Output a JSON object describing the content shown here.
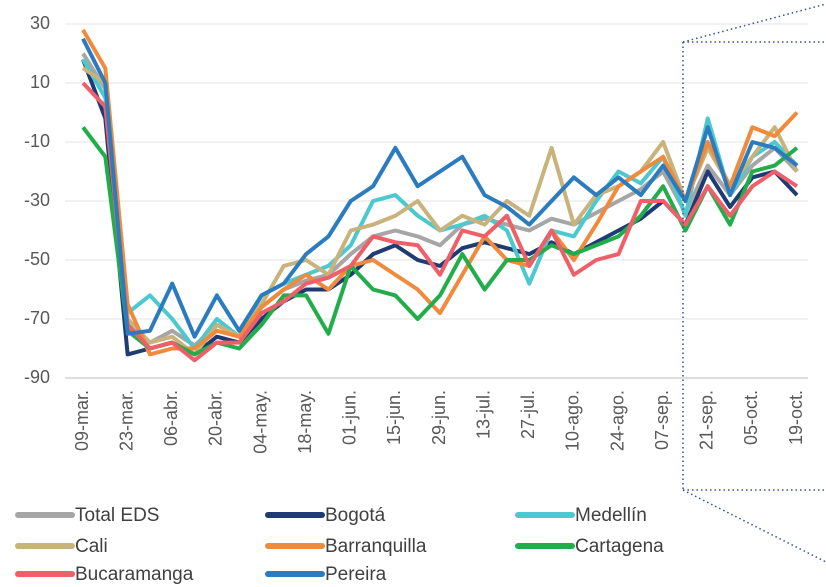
{
  "chart_data": {
    "type": "line",
    "categories": [
      "09-mar.",
      null,
      "23-mar.",
      null,
      "06-abr.",
      null,
      "20-abr.",
      null,
      "04-may.",
      null,
      "18-may.",
      null,
      "01-jun.",
      null,
      "15-jun.",
      null,
      "29-jun.",
      null,
      "13-jul.",
      null,
      "27-jul.",
      null,
      "10-ago.",
      null,
      "24-ago.",
      null,
      "07-sep.",
      null,
      "21-sep.",
      null,
      "05-oct.",
      null,
      "19-oct."
    ],
    "ylim": [
      -90,
      30
    ],
    "yticks": [
      30,
      10,
      -10,
      -30,
      -50,
      -70,
      -90
    ],
    "grid": true,
    "series": [
      {
        "name": "Total EDS",
        "color": "#a6a6a6",
        "values": [
          20,
          8,
          -72,
          -78,
          -74,
          -79,
          -72,
          -76,
          -66,
          -60,
          -57,
          -55,
          -48,
          -42,
          -40,
          -42,
          -45,
          -38,
          -36,
          -38,
          -40,
          -36,
          -38,
          -34,
          -30,
          -26,
          -20,
          -34,
          -18,
          -28,
          -18,
          -12,
          -20
        ]
      },
      {
        "name": "Bogotá",
        "color": "#1f3b73",
        "values": [
          18,
          -2,
          -82,
          -80,
          -78,
          -82,
          -76,
          -78,
          -70,
          -64,
          -60,
          -60,
          -55,
          -48,
          -45,
          -50,
          -52,
          -46,
          -44,
          -46,
          -48,
          -44,
          -48,
          -44,
          -40,
          -36,
          -30,
          -38,
          -20,
          -32,
          -22,
          -20,
          -28
        ]
      },
      {
        "name": "Medellín",
        "color": "#4cc8cf",
        "values": [
          18,
          5,
          -68,
          -62,
          -70,
          -80,
          -70,
          -76,
          -62,
          -58,
          -55,
          -52,
          -45,
          -30,
          -28,
          -35,
          -40,
          -38,
          -35,
          -40,
          -58,
          -40,
          -42,
          -30,
          -20,
          -24,
          -15,
          -35,
          -2,
          -28,
          -15,
          -10,
          -18
        ]
      },
      {
        "name": "Cali",
        "color": "#c9b37c",
        "values": [
          15,
          10,
          -70,
          -78,
          -76,
          -82,
          -72,
          -76,
          -65,
          -52,
          -50,
          -55,
          -40,
          -38,
          -35,
          -30,
          -40,
          -35,
          -38,
          -30,
          -35,
          -12,
          -38,
          -28,
          -25,
          -20,
          -10,
          -30,
          -12,
          -25,
          -15,
          -5,
          -20
        ]
      },
      {
        "name": "Barranquilla",
        "color": "#f08a3c",
        "values": [
          28,
          15,
          -65,
          -82,
          -80,
          -80,
          -74,
          -76,
          -66,
          -60,
          -55,
          -60,
          -52,
          -50,
          -55,
          -60,
          -68,
          -55,
          -42,
          -50,
          -52,
          -40,
          -50,
          -38,
          -25,
          -20,
          -15,
          -30,
          -10,
          -25,
          -5,
          -8,
          0
        ]
      },
      {
        "name": "Cartagena",
        "color": "#22ad4b",
        "values": [
          -5,
          -15,
          -74,
          -80,
          -78,
          -82,
          -78,
          -80,
          -72,
          -62,
          -62,
          -75,
          -52,
          -60,
          -62,
          -70,
          -62,
          -48,
          -60,
          -50,
          -50,
          -45,
          -48,
          -45,
          -42,
          -35,
          -25,
          -40,
          -25,
          -38,
          -20,
          -18,
          -12
        ]
      },
      {
        "name": "Bucaramanga",
        "color": "#ee5f69",
        "values": [
          10,
          2,
          -72,
          -80,
          -78,
          -84,
          -78,
          -78,
          -68,
          -64,
          -58,
          -56,
          -52,
          -42,
          -44,
          -45,
          -55,
          -40,
          -42,
          -35,
          -52,
          -40,
          -55,
          -50,
          -48,
          -30,
          -30,
          -38,
          -25,
          -35,
          -25,
          -20,
          -25
        ]
      },
      {
        "name": "Pereira",
        "color": "#2b7bbf",
        "values": [
          25,
          10,
          -75,
          -74,
          -58,
          -76,
          -62,
          -74,
          -62,
          -58,
          -48,
          -42,
          -30,
          -25,
          -12,
          -25,
          -20,
          -15,
          -28,
          -32,
          -38,
          -30,
          -22,
          -28,
          -22,
          -28,
          -18,
          -30,
          -5,
          -28,
          -10,
          -12,
          -18
        ]
      }
    ]
  }
}
